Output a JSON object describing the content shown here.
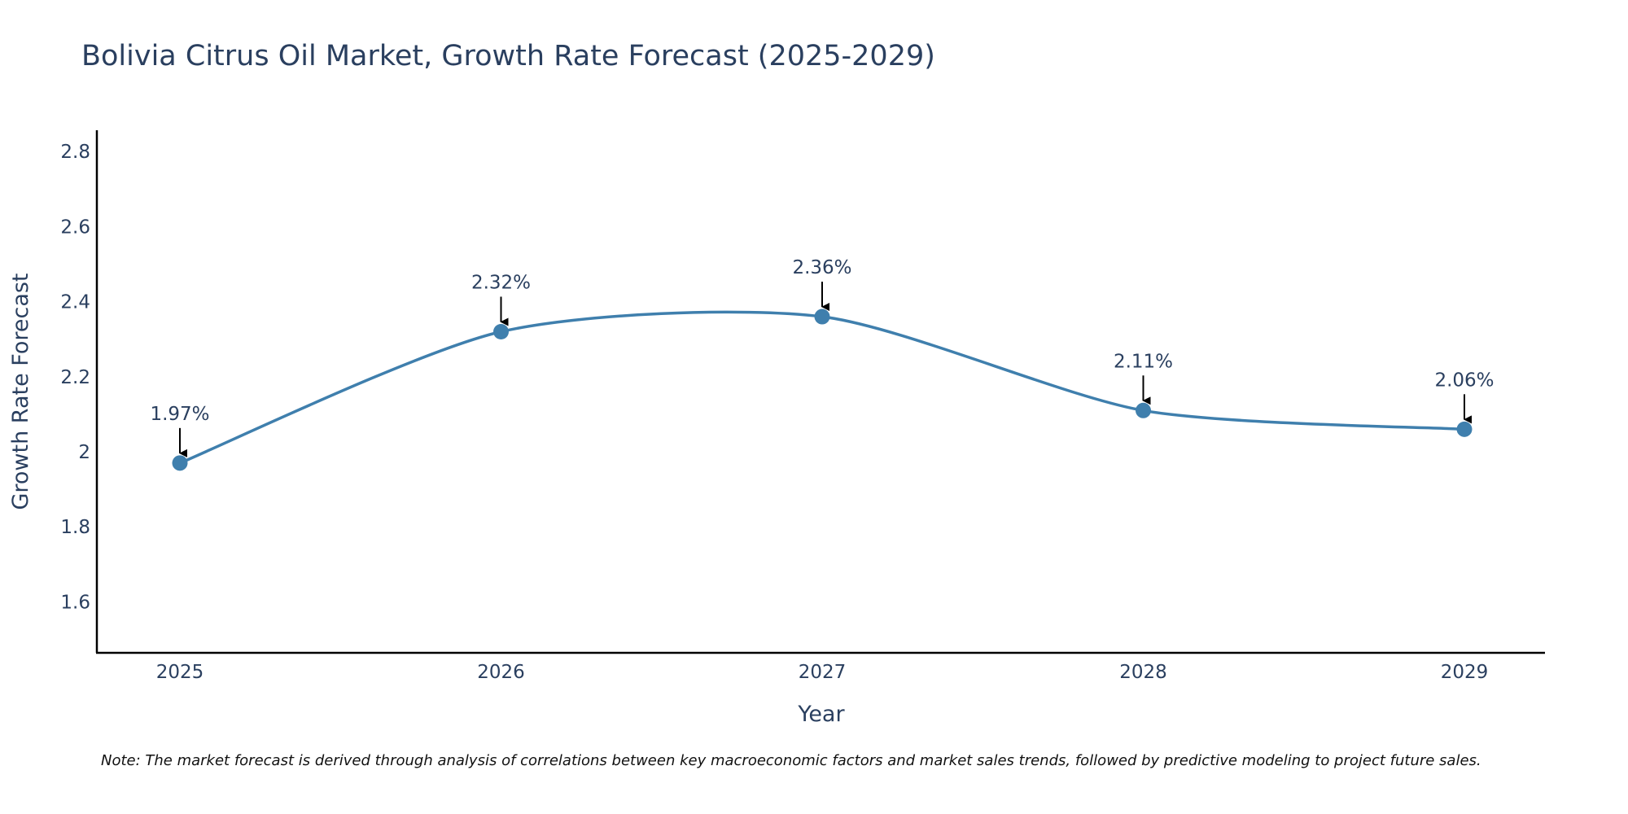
{
  "chart_data": {
    "type": "line",
    "title": "Bolivia Citrus Oil Market, Growth Rate Forecast (2025-2029)",
    "xlabel": "Year",
    "ylabel": "Growth Rate Forecast",
    "categories": [
      "2025",
      "2026",
      "2027",
      "2028",
      "2029"
    ],
    "values": [
      1.97,
      2.32,
      2.36,
      2.11,
      2.06
    ],
    "data_labels": [
      "1.97%",
      "2.32%",
      "2.36%",
      "2.11%",
      "2.06%"
    ],
    "y_ticks": [
      1.6,
      1.8,
      2,
      2.2,
      2.4,
      2.6,
      2.8
    ],
    "y_tick_labels": [
      "1.6",
      "1.8",
      "2",
      "2.2",
      "2.4",
      "2.6",
      "2.8"
    ],
    "ylim": [
      1.47,
      2.86
    ],
    "line_shape": "spline",
    "grid": false,
    "legend": "none",
    "note": "Note: The market forecast is derived through analysis of correlations between key macroeconomic factors and market sales trends, followed by predictive modeling to project future sales."
  },
  "colors": {
    "line": "#3f7fad",
    "marker": "#3f7fad",
    "text": "#2a3f5f",
    "axis": "#000000",
    "arrow": "#000000"
  }
}
